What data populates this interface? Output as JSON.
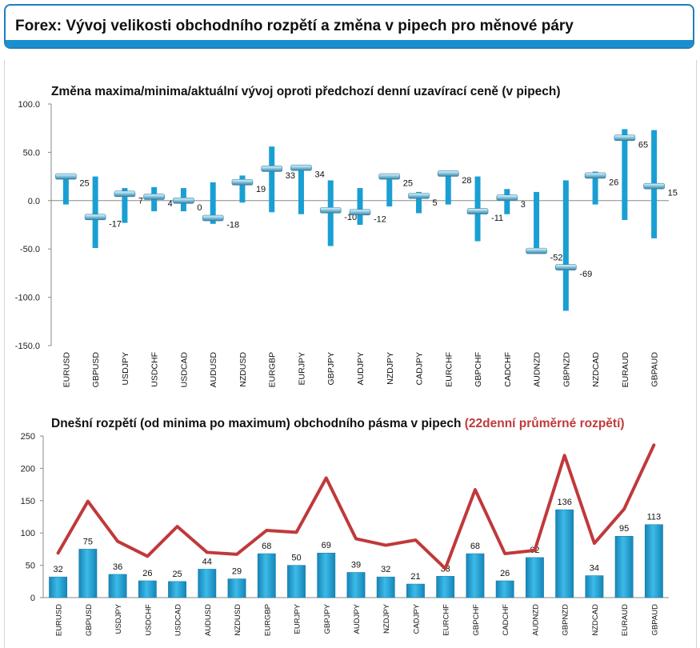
{
  "header": {
    "title": "Forex: Vývoj velikosti obchodního rozpětí a změna v pipech pro měnové páry"
  },
  "colors": {
    "accent": "#1a8fd0",
    "bar": "#1a9fd4",
    "avg_line": "#c0393b",
    "title_red": "#c0393b"
  },
  "chart_data": [
    {
      "type": "bar",
      "title": "Změna maxima/minima/aktuální vývoj oproti předchozí denní uzavírací ceně (v pipech)",
      "categories": [
        "EURUSD",
        "GBPUSD",
        "USDJPY",
        "USDCHF",
        "USDCAD",
        "AUDUSD",
        "NZDUSD",
        "EURGBP",
        "EURJPY",
        "GBPJPY",
        "AUDJPY",
        "NZDJPY",
        "CADJPY",
        "EURCHF",
        "GBPCHF",
        "CADCHF",
        "AUDNZD",
        "GBPNZD",
        "NZDCAD",
        "EURAUD",
        "GBPAUD"
      ],
      "series": [
        {
          "name": "max",
          "values": [
            28,
            25,
            13,
            14,
            13,
            19,
            26,
            56,
            36,
            21,
            13,
            27,
            9,
            31,
            25,
            12,
            9,
            21,
            30,
            74,
            73
          ]
        },
        {
          "name": "min",
          "values": [
            -4,
            -49,
            -23,
            -11,
            -11,
            -24,
            -2,
            -12,
            -14,
            -47,
            -25,
            -6,
            -13,
            -4,
            -42,
            -14,
            -53,
            -114,
            -4,
            -20,
            -39
          ]
        },
        {
          "name": "current",
          "values": [
            25,
            -17,
            7,
            4,
            0,
            -18,
            19,
            33,
            34,
            -10,
            -12,
            25,
            5,
            28,
            -11,
            3,
            -52,
            -69,
            26,
            65,
            15
          ]
        }
      ],
      "data_labels": [
        "25",
        "-17",
        "7",
        "4",
        "0",
        "-18",
        "19",
        "33",
        "34",
        "-10",
        "-12",
        "25",
        "5",
        "28",
        "-11",
        "3",
        "-52",
        "-69",
        "26",
        "65",
        "15"
      ],
      "ylim": [
        -150,
        100
      ],
      "yticks": [
        "100.0",
        "50.0",
        "0.0",
        "-50.0",
        "-100.0",
        "-150.0"
      ],
      "grid": false
    },
    {
      "type": "bar",
      "title": "Dnešní rozpětí (od minima po maximum) obchodního pásma v pipech",
      "title_highlight": "(22denní průměrné rozpětí)",
      "categories": [
        "EURUSD",
        "GBPUSD",
        "USDJPY",
        "USDCHF",
        "USDCAD",
        "AUDUSD",
        "NZDUSD",
        "EURGBP",
        "EURJPY",
        "GBPJPY",
        "AUDJPY",
        "NZDJPY",
        "CADJPY",
        "EURCHF",
        "GBPCHF",
        "CADCHF",
        "AUDNZD",
        "GBPNZD",
        "NZDCAD",
        "EURAUD",
        "GBPAUD"
      ],
      "series": [
        {
          "values": [
            32,
            75,
            36,
            26,
            25,
            44,
            29,
            68,
            50,
            69,
            39,
            32,
            21,
            33,
            68,
            26,
            62,
            136,
            34,
            95,
            113
          ]
        },
        {
          "type": "line",
          "values": [
            69,
            149,
            87,
            64,
            110,
            70,
            67,
            104,
            101,
            185,
            91,
            81,
            89,
            45,
            167,
            68,
            73,
            220,
            84,
            137,
            236
          ]
        }
      ],
      "data_labels": [
        "32",
        "75",
        "36",
        "26",
        "25",
        "44",
        "29",
        "68",
        "50",
        "69",
        "39",
        "32",
        "21",
        "33",
        "68",
        "26",
        "62",
        "136",
        "34",
        "95",
        "113"
      ],
      "ylim": [
        0,
        250
      ],
      "yticks": [
        "250",
        "200",
        "150",
        "100",
        "50",
        "0"
      ],
      "grid": false
    }
  ]
}
